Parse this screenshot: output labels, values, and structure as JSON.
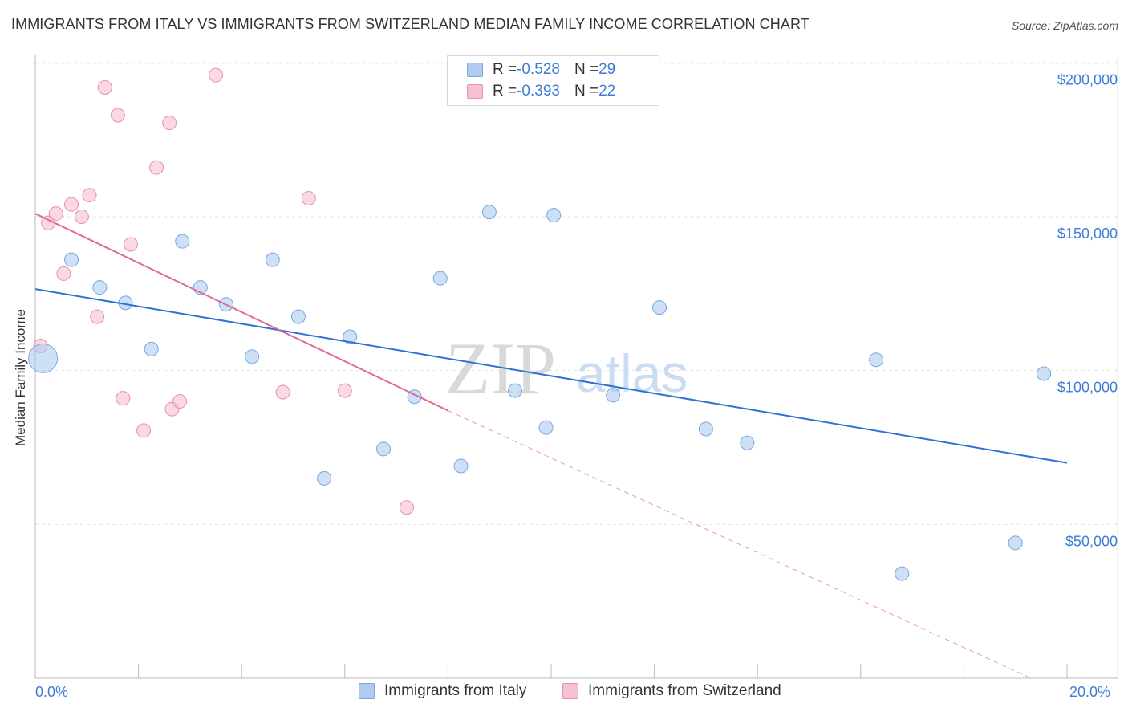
{
  "title": "IMMIGRANTS FROM ITALY VS IMMIGRANTS FROM SWITZERLAND MEDIAN FAMILY INCOME CORRELATION CHART",
  "source": "Source: ZipAtlas.com",
  "watermark": {
    "zip": "ZIP",
    "atlas": "atlas"
  },
  "colors": {
    "italy_fill": "#aecbf0",
    "italy_stroke": "#7aa6de",
    "italy_line": "#2f72d1",
    "swiss_fill": "#f7bfcf",
    "swiss_stroke": "#e891aa",
    "swiss_line": "#e06a93",
    "accent_text": "#3d7dd6",
    "grid": "#e3e3e3"
  },
  "correlation_box": {
    "rows": [
      {
        "r_label": "R = ",
        "r_value": "-0.528",
        "n_label": "N = ",
        "n_value": "29"
      },
      {
        "r_label": "R = ",
        "r_value": "-0.393",
        "n_label": "N = ",
        "n_value": "22"
      }
    ]
  },
  "legend": {
    "italy": "Immigrants from Italy",
    "switzerland": "Immigrants from Switzerland"
  },
  "x_axis": {
    "min_label": "0.0%",
    "max_label": "20.0%"
  },
  "chart_data": {
    "type": "scatter",
    "title": "IMMIGRANTS FROM ITALY VS IMMIGRANTS FROM SWITZERLAND MEDIAN FAMILY INCOME CORRELATION CHART",
    "xlabel": "",
    "ylabel": "Median Family Income",
    "xlim": [
      0,
      20
    ],
    "ylim": [
      0,
      210000
    ],
    "x_unit": "%",
    "yticks": [
      50000,
      100000,
      150000,
      200000
    ],
    "ytick_labels": [
      "$50,000",
      "$100,000",
      "$150,000",
      "$200,000"
    ],
    "grid": true,
    "series": [
      {
        "name": "Immigrants from Italy",
        "r": -0.528,
        "n": 29,
        "points": [
          {
            "x": 0.15,
            "y": 104000,
            "big": true
          },
          {
            "x": 0.7,
            "y": 136000
          },
          {
            "x": 1.25,
            "y": 127000
          },
          {
            "x": 1.75,
            "y": 122000
          },
          {
            "x": 2.25,
            "y": 107000
          },
          {
            "x": 2.85,
            "y": 142000
          },
          {
            "x": 3.2,
            "y": 127000
          },
          {
            "x": 3.7,
            "y": 121500
          },
          {
            "x": 4.2,
            "y": 104500
          },
          {
            "x": 4.6,
            "y": 136000
          },
          {
            "x": 5.1,
            "y": 117500
          },
          {
            "x": 5.6,
            "y": 65000
          },
          {
            "x": 6.1,
            "y": 111000
          },
          {
            "x": 6.75,
            "y": 74500
          },
          {
            "x": 7.35,
            "y": 91500
          },
          {
            "x": 7.85,
            "y": 130000
          },
          {
            "x": 8.25,
            "y": 69000
          },
          {
            "x": 8.8,
            "y": 151500
          },
          {
            "x": 9.3,
            "y": 93500
          },
          {
            "x": 9.9,
            "y": 81500
          },
          {
            "x": 10.05,
            "y": 150500
          },
          {
            "x": 11.2,
            "y": 92000
          },
          {
            "x": 12.1,
            "y": 120500
          },
          {
            "x": 13.0,
            "y": 81000
          },
          {
            "x": 13.8,
            "y": 76500
          },
          {
            "x": 16.3,
            "y": 103500
          },
          {
            "x": 16.8,
            "y": 34000
          },
          {
            "x": 19.0,
            "y": 44000
          },
          {
            "x": 19.55,
            "y": 99000
          }
        ],
        "trend": {
          "x0": 0,
          "y0": 126500,
          "x1": 20,
          "y1": 70000
        }
      },
      {
        "name": "Immigrants from Switzerland",
        "r": -0.393,
        "n": 22,
        "points": [
          {
            "x": 0.1,
            "y": 108000
          },
          {
            "x": 0.25,
            "y": 148000
          },
          {
            "x": 0.4,
            "y": 151000
          },
          {
            "x": 0.55,
            "y": 131500
          },
          {
            "x": 0.7,
            "y": 154000
          },
          {
            "x": 0.9,
            "y": 150000
          },
          {
            "x": 1.05,
            "y": 157000
          },
          {
            "x": 1.2,
            "y": 117500
          },
          {
            "x": 1.35,
            "y": 192000
          },
          {
            "x": 1.6,
            "y": 183000
          },
          {
            "x": 1.7,
            "y": 91000
          },
          {
            "x": 1.85,
            "y": 141000
          },
          {
            "x": 2.1,
            "y": 80500
          },
          {
            "x": 2.35,
            "y": 166000
          },
          {
            "x": 2.6,
            "y": 180500
          },
          {
            "x": 2.65,
            "y": 87500
          },
          {
            "x": 2.8,
            "y": 90000
          },
          {
            "x": 3.5,
            "y": 196000
          },
          {
            "x": 4.8,
            "y": 93000
          },
          {
            "x": 5.3,
            "y": 156000
          },
          {
            "x": 6.0,
            "y": 93500
          },
          {
            "x": 7.2,
            "y": 55500
          }
        ],
        "trend": {
          "x0": 0,
          "y0": 151000,
          "x1": 8.0,
          "y1": 87000,
          "dash_x1": 19.3,
          "dash_y1": 0
        }
      }
    ]
  }
}
